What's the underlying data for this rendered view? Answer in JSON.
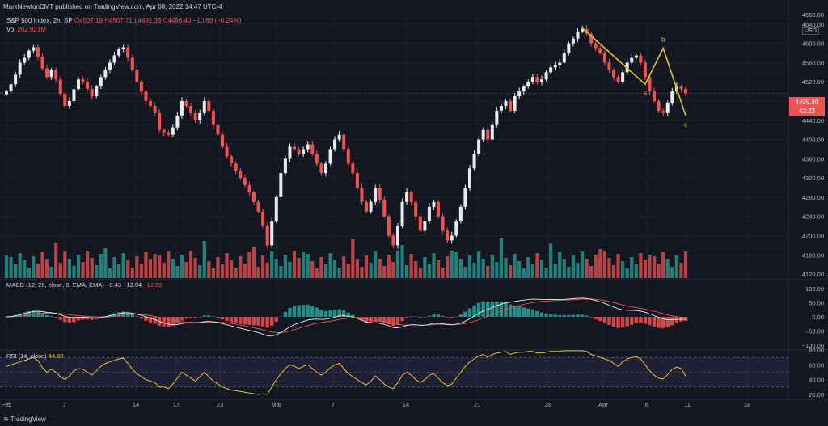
{
  "header": {
    "published": "MarkNewtonCMT published on TradingView.com, Apr 08, 2022 14:47 UTC-4",
    "symbol": "S&P 500 Index, 2h, SP",
    "ohlc": {
      "o": "O4507.19",
      "h": "H4507.71",
      "l": "L4491.39",
      "c": "C4496.40",
      "chg": "−10.69 (−0.24%)"
    },
    "volume_label": "Vol",
    "volume_value": "262.921M",
    "currency": "USD",
    "last_price": "4496.40",
    "countdown": "42:23"
  },
  "macd_header": {
    "label": "MACD (12, 26, close, 9, EMA, EMA)",
    "hist": "−0.43",
    "macd": "−12.94",
    "signal": "−12.50"
  },
  "rsi_header": {
    "label": "RSI (14, close)",
    "value": "44.60"
  },
  "watermark": "TradingView",
  "annotations": {
    "a": "a",
    "b": "b",
    "c": "c"
  },
  "colors": {
    "up": "#e8eaee",
    "down": "#ef5350",
    "vol_up": "#26a69a",
    "vol_down": "#ef5350",
    "macd": "#e8eaee",
    "signal": "#ef5350",
    "rsi": "#e6c229",
    "wave": "#e6c229",
    "bg": "#131722"
  },
  "chart_data": [
    {
      "type": "candlestick",
      "title": "S&P 500 Index, 2h",
      "ylim": [
        4110,
        4660
      ],
      "y_ticks": [
        "4660.00",
        "4640.00",
        "4600.00",
        "4560.00",
        "4520.00",
        "4480.00",
        "4440.00",
        "4400.00",
        "4360.00",
        "4320.00",
        "4280.00",
        "4240.00",
        "4200.00",
        "4160.00",
        "4120.00"
      ],
      "x_ticks": [
        "Feb",
        "7",
        "14",
        "17",
        "23",
        "Mar",
        "7",
        "14",
        "21",
        "28",
        "Apr",
        "6",
        "11",
        "18"
      ],
      "closes": [
        4500,
        4515,
        4535,
        4560,
        4570,
        4585,
        4592,
        4572,
        4548,
        4530,
        4545,
        4525,
        4495,
        4470,
        4480,
        4505,
        4525,
        4520,
        4505,
        4490,
        4510,
        4530,
        4545,
        4560,
        4575,
        4588,
        4592,
        4570,
        4545,
        4520,
        4500,
        4480,
        4470,
        4455,
        4420,
        4415,
        4410,
        4425,
        4450,
        4480,
        4470,
        4455,
        4440,
        4455,
        4480,
        4460,
        4430,
        4410,
        4385,
        4365,
        4350,
        4335,
        4320,
        4305,
        4290,
        4270,
        4250,
        4220,
        4180,
        4230,
        4280,
        4330,
        4360,
        4385,
        4380,
        4370,
        4380,
        4390,
        4370,
        4350,
        4330,
        4350,
        4380,
        4400,
        4410,
        4380,
        4350,
        4330,
        4300,
        4270,
        4250,
        4270,
        4300,
        4275,
        4240,
        4200,
        4180,
        4220,
        4270,
        4290,
        4270,
        4240,
        4210,
        4230,
        4260,
        4270,
        4240,
        4210,
        4190,
        4200,
        4230,
        4260,
        4300,
        4340,
        4370,
        4400,
        4420,
        4400,
        4430,
        4460,
        4470,
        4480,
        4460,
        4490,
        4500,
        4510,
        4520,
        4530,
        4520,
        4525,
        4540,
        4550,
        4555,
        4560,
        4580,
        4600,
        4610,
        4625,
        4630,
        4620,
        4600,
        4590,
        4580,
        4560,
        4545,
        4530,
        4520,
        4540,
        4560,
        4570,
        4575,
        4560,
        4530,
        4500,
        4480,
        4460,
        4455,
        4475,
        4500,
        4510,
        4505,
        4496
      ],
      "annotations": [
        "a",
        "b",
        "c"
      ]
    },
    {
      "type": "bar",
      "title": "Vol",
      "last_value": "262.921M"
    },
    {
      "type": "line",
      "title": "MACD (12, 26, close, 9, EMA, EMA)",
      "ylim": [
        -100,
        100
      ],
      "y_ticks": [
        "100.00",
        "50.00",
        "0.00",
        "−50.00",
        "−100.00"
      ],
      "values": {
        "histogram": -0.43,
        "macd": -12.94,
        "signal": -12.5
      }
    },
    {
      "type": "line",
      "title": "RSI (14, close)",
      "ylim": [
        20,
        80
      ],
      "y_ticks": [
        "80.00",
        "60.00",
        "40.00",
        "20.00"
      ],
      "last_value": 44.6,
      "values": [
        58,
        60,
        62,
        64,
        66,
        68,
        70,
        66,
        56,
        50,
        54,
        50,
        44,
        40,
        45,
        52,
        55,
        54,
        50,
        46,
        52,
        58,
        62,
        64,
        66,
        68,
        69,
        62,
        54,
        48,
        44,
        40,
        38,
        36,
        30,
        30,
        28,
        34,
        42,
        50,
        46,
        42,
        38,
        44,
        50,
        44,
        38,
        34,
        30,
        28,
        26,
        25,
        24,
        23,
        22,
        21,
        20,
        21,
        20,
        30,
        40,
        48,
        55,
        60,
        58,
        55,
        58,
        60,
        55,
        50,
        46,
        50,
        56,
        60,
        62,
        55,
        48,
        44,
        40,
        36,
        33,
        38,
        45,
        40,
        34,
        30,
        28,
        36,
        46,
        50,
        46,
        40,
        36,
        40,
        46,
        48,
        42,
        36,
        32,
        34,
        42,
        50,
        58,
        64,
        68,
        72,
        74,
        70,
        74,
        76,
        77,
        78,
        74,
        76,
        77,
        77,
        78,
        78,
        76,
        76,
        77,
        78,
        78,
        78,
        79,
        79,
        79,
        79,
        79,
        78,
        74,
        72,
        70,
        68,
        66,
        62,
        58,
        64,
        68,
        70,
        71,
        68,
        60,
        52,
        46,
        42,
        41,
        47,
        54,
        57,
        55,
        44.6
      ]
    }
  ]
}
